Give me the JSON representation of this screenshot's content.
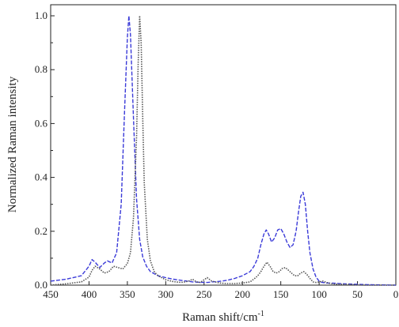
{
  "chart_data": {
    "type": "line",
    "title": "",
    "xlabel": "Raman shift/cm",
    "xlabel_sup": "-1",
    "ylabel": "Normalized Raman intensity",
    "xlim": [
      450,
      0
    ],
    "ylim": [
      0,
      1.0
    ],
    "x_reversed": true,
    "grid": false,
    "legend": "none",
    "x_ticks": [
      450,
      400,
      350,
      300,
      250,
      200,
      150,
      100,
      50,
      0
    ],
    "x_tick_labels": [
      "450",
      "400",
      "350",
      "300",
      "250",
      "200",
      "150",
      "100",
      "50",
      "0"
    ],
    "y_ticks": [
      0.0,
      0.2,
      0.4,
      0.6,
      0.8,
      1.0
    ],
    "y_tick_labels": [
      "0.0",
      "0.2",
      "0.4",
      "0.6",
      "0.8",
      "1.0"
    ],
    "series": [
      {
        "color": "#3a3ad8",
        "style": "dash",
        "x": [
          450,
          430,
          410,
          400,
          396,
          392,
          386,
          380,
          376,
          370,
          364,
          358,
          354,
          350,
          348,
          346,
          342,
          338,
          334,
          330,
          325,
          320,
          310,
          300,
          290,
          280,
          270,
          265,
          260,
          250,
          245,
          240,
          230,
          220,
          210,
          200,
          190,
          185,
          180,
          176,
          172,
          169,
          166,
          162,
          158,
          154,
          150,
          146,
          142,
          138,
          134,
          130,
          127,
          124,
          121,
          118,
          115,
          112,
          108,
          104,
          100,
          96,
          90,
          80,
          70,
          60,
          50,
          40,
          20,
          0
        ],
        "y": [
          0.015,
          0.022,
          0.035,
          0.07,
          0.095,
          0.085,
          0.065,
          0.082,
          0.09,
          0.082,
          0.12,
          0.3,
          0.62,
          0.92,
          1.0,
          0.93,
          0.62,
          0.32,
          0.17,
          0.105,
          0.07,
          0.05,
          0.035,
          0.028,
          0.022,
          0.018,
          0.014,
          0.012,
          0.011,
          0.01,
          0.01,
          0.012,
          0.014,
          0.018,
          0.025,
          0.035,
          0.05,
          0.07,
          0.1,
          0.15,
          0.19,
          0.205,
          0.19,
          0.16,
          0.175,
          0.205,
          0.21,
          0.19,
          0.16,
          0.14,
          0.15,
          0.2,
          0.27,
          0.33,
          0.345,
          0.3,
          0.2,
          0.12,
          0.06,
          0.03,
          0.015,
          0.01,
          0.008,
          0.007,
          0.005,
          0.004,
          0.003,
          0.002,
          0.001,
          0.0
        ]
      },
      {
        "color": "#555555",
        "style": "dot",
        "x": [
          450,
          430,
          410,
          400,
          396,
          392,
          386,
          380,
          374,
          368,
          362,
          356,
          350,
          346,
          342,
          338,
          336,
          334,
          332,
          330,
          328,
          324,
          320,
          315,
          310,
          300,
          290,
          280,
          275,
          270,
          265,
          260,
          255,
          250,
          246,
          240,
          230,
          220,
          210,
          200,
          190,
          184,
          180,
          176,
          172,
          168,
          164,
          160,
          156,
          152,
          148,
          144,
          140,
          136,
          132,
          128,
          124,
          120,
          116,
          112,
          108,
          104,
          100,
          95,
          90,
          85,
          80,
          70,
          60,
          50,
          40,
          20,
          0
        ],
        "y": [
          0.0,
          0.005,
          0.012,
          0.03,
          0.055,
          0.07,
          0.06,
          0.045,
          0.05,
          0.07,
          0.065,
          0.06,
          0.08,
          0.12,
          0.25,
          0.55,
          0.82,
          1.0,
          0.9,
          0.62,
          0.38,
          0.17,
          0.09,
          0.05,
          0.035,
          0.02,
          0.013,
          0.01,
          0.012,
          0.015,
          0.022,
          0.012,
          0.01,
          0.02,
          0.028,
          0.015,
          0.008,
          0.006,
          0.006,
          0.008,
          0.012,
          0.025,
          0.035,
          0.05,
          0.07,
          0.085,
          0.07,
          0.05,
          0.045,
          0.05,
          0.062,
          0.065,
          0.055,
          0.045,
          0.035,
          0.035,
          0.045,
          0.05,
          0.04,
          0.025,
          0.012,
          0.01,
          0.012,
          0.015,
          0.01,
          0.006,
          0.004,
          0.003,
          0.002,
          0.001,
          0.0,
          0.0,
          0.0
        ]
      }
    ]
  }
}
